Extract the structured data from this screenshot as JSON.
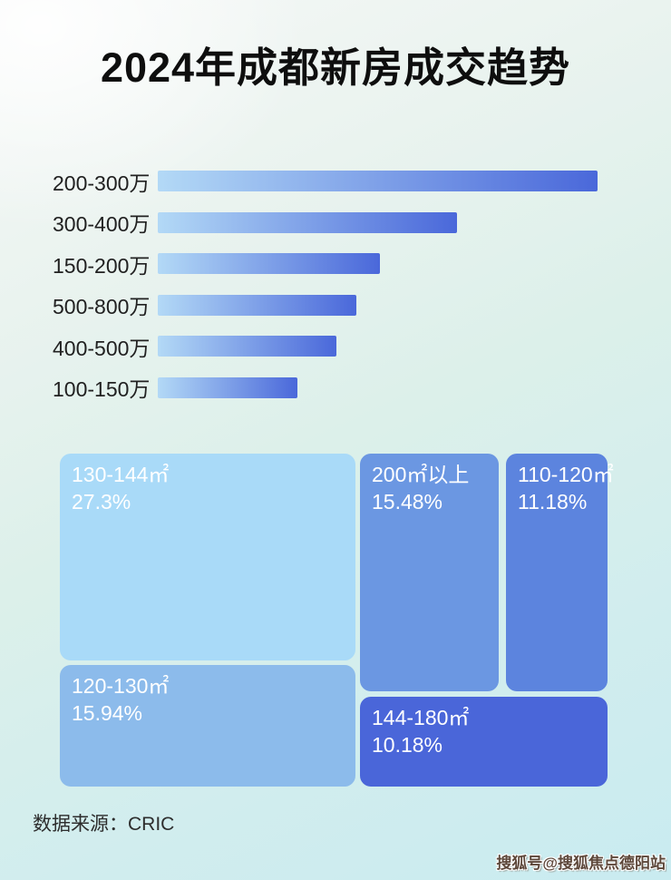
{
  "title": "2024年成都新房成交趋势",
  "footer": {
    "source": "数据来源：CRIC"
  },
  "watermark": "搜狐号@搜狐焦点德阳站",
  "chart_data": [
    {
      "type": "bar",
      "orientation": "horizontal",
      "categories": [
        "200-300万",
        "300-400万",
        "150-200万",
        "500-800万",
        "400-500万",
        "100-150万"
      ],
      "values_relative_to_max_pct": [
        100,
        68,
        50.5,
        45.2,
        40.6,
        31.8
      ],
      "value_labels_shown": false,
      "bar_gradient": [
        "#b3d9f6",
        "#4a68da"
      ],
      "label_color": "#212121"
    },
    {
      "type": "treemap",
      "items": [
        {
          "label": "130-144㎡",
          "value": "27.3%",
          "color": "#a9daf8"
        },
        {
          "label": "120-130㎡",
          "value": "15.94%",
          "color": "#8cbbeb"
        },
        {
          "label": "200㎡以上",
          "value": "15.48%",
          "color": "#6b97e2"
        },
        {
          "label": "110-120㎡",
          "value": "11.18%",
          "color": "#5c84de"
        },
        {
          "label": "144-180㎡",
          "value": "10.18%",
          "color": "#4a66d9"
        }
      ],
      "text_color": "#ffffff"
    }
  ]
}
